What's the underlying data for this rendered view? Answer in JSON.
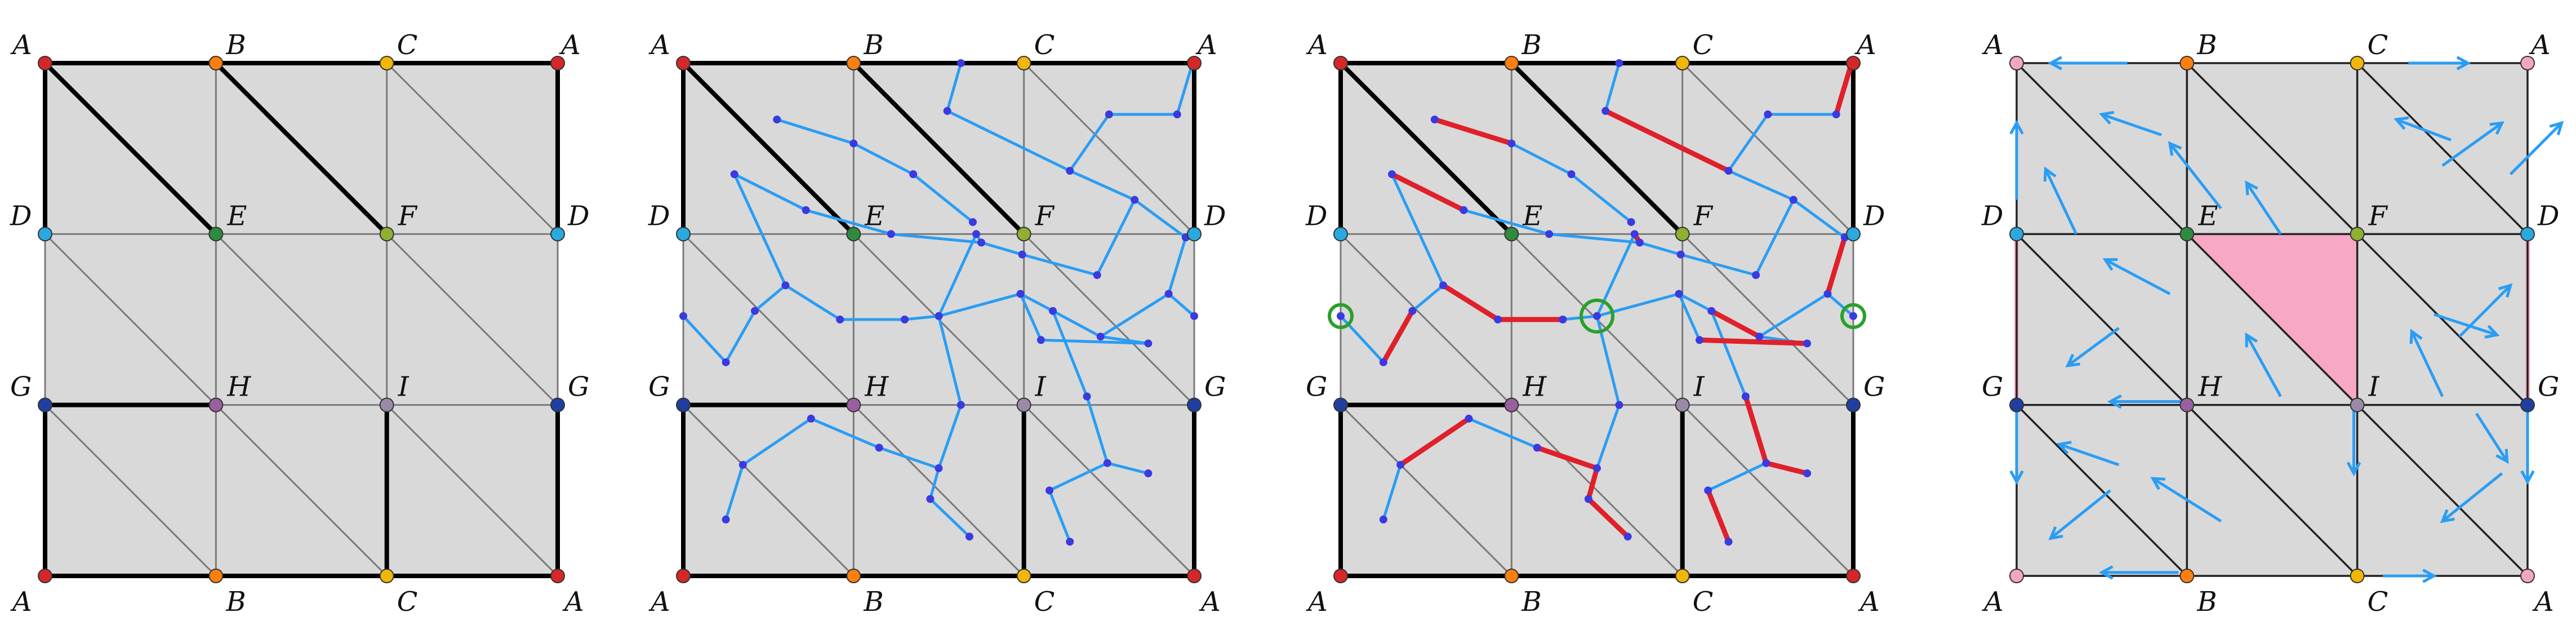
{
  "panels": [
    {
      "id": "p1",
      "labels": {
        "top": [
          "A",
          "B",
          "C",
          "A"
        ],
        "row1": [
          "D",
          "E",
          "F",
          "D"
        ],
        "row2": [
          "G",
          "H",
          "I",
          "G"
        ],
        "bottom": [
          "A",
          "B",
          "C",
          "A"
        ]
      },
      "colors": {
        "A": "#d62728",
        "B": "#ff7f0e",
        "C": "#f2b705",
        "D": "#29a9e0",
        "E": "#2e8b3e",
        "F": "#8fb030",
        "G": "#1f3fa0",
        "H": "#9a5fa0",
        "I": "#9a8aa8"
      }
    },
    {
      "id": "p2",
      "labels": {
        "top": [
          "A",
          "B",
          "C",
          "A"
        ],
        "row1": [
          "D",
          "E",
          "F",
          "D"
        ],
        "row2": [
          "G",
          "H",
          "I",
          "G"
        ],
        "bottom": [
          "A",
          "B",
          "C",
          "A"
        ]
      },
      "colors": {
        "A": "#d62728",
        "B": "#ff7f0e",
        "C": "#f2b705",
        "D": "#29a9e0",
        "E": "#2e8b3e",
        "F": "#8fb030",
        "G": "#1f3fa0",
        "H": "#9a5fa0",
        "I": "#9a8aa8"
      }
    },
    {
      "id": "p3",
      "labels": {
        "top": [
          "A",
          "B",
          "C",
          "A"
        ],
        "row1": [
          "D",
          "E",
          "F",
          "D"
        ],
        "row2": [
          "G",
          "H",
          "I",
          "G"
        ],
        "bottom": [
          "A",
          "B",
          "C",
          "A"
        ]
      },
      "colors": {
        "A": "#d62728",
        "B": "#ff7f0e",
        "C": "#f2b705",
        "D": "#29a9e0",
        "E": "#2e8b3e",
        "F": "#8fb030",
        "G": "#1f3fa0",
        "H": "#9a5fa0",
        "I": "#9a8aa8"
      }
    },
    {
      "id": "p4",
      "labels": {
        "top": [
          "A",
          "B",
          "C",
          "A"
        ],
        "row1": [
          "D",
          "E",
          "F",
          "D"
        ],
        "row2": [
          "G",
          "H",
          "I",
          "G"
        ],
        "bottom": [
          "A",
          "B",
          "C",
          "A"
        ]
      },
      "colors": {
        "A": "#f4a6c0",
        "B": "#ff7f0e",
        "C": "#f2b705",
        "D": "#29a9e0",
        "E": "#2e8b3e",
        "F": "#8fb030",
        "G": "#1f3fa0",
        "H": "#9a5fa0",
        "I": "#9a8aa8"
      }
    }
  ],
  "style": {
    "fill": "#d9d9d9",
    "grid_line": "#7a7a7a",
    "heavy_line": "#000000",
    "graph_blue": "#2a9df4",
    "node_blue": "#3a3adf",
    "matching_red": "#e0202a",
    "critical_green": "#2aa02a",
    "highlight_pink": "#f7a8c4"
  }
}
